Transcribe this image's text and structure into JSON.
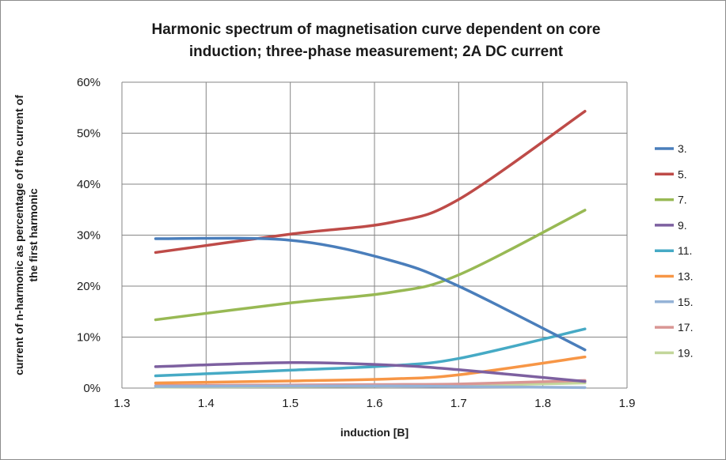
{
  "chart_data": {
    "type": "line",
    "title": [
      "Harmonic spectrum of magnetisation curve dependent on core",
      "induction; three-phase measurement; 2A DC current"
    ],
    "xlabel": "induction [B]",
    "ylabel": [
      "current of n-harmonic as percentage of the current of",
      "the first harmonic"
    ],
    "xlim": [
      1.3,
      1.9
    ],
    "ylim": [
      0,
      0.6
    ],
    "x_ticks": [
      1.3,
      1.4,
      1.5,
      1.6,
      1.7,
      1.8,
      1.9
    ],
    "x_tick_labels": [
      "1.3",
      "1.4",
      "1.5",
      "1.6",
      "1.7",
      "1.8",
      "1.9"
    ],
    "y_ticks": [
      0,
      0.1,
      0.2,
      0.3,
      0.4,
      0.5,
      0.6
    ],
    "y_tick_labels": [
      "0%",
      "10%",
      "20%",
      "30%",
      "40%",
      "50%",
      "60%"
    ],
    "grid": true,
    "legend_position": "right",
    "x": [
      1.34,
      1.5,
      1.62,
      1.7,
      1.85
    ],
    "series": [
      {
        "name": "3.",
        "color": "#4a7ebb",
        "values": [
          0.293,
          0.29,
          0.25,
          0.2,
          0.075
        ]
      },
      {
        "name": "5.",
        "color": "#be4b48",
        "values": [
          0.266,
          0.302,
          0.325,
          0.37,
          0.543
        ]
      },
      {
        "name": "7.",
        "color": "#98b954",
        "values": [
          0.134,
          0.167,
          0.188,
          0.222,
          0.349
        ]
      },
      {
        "name": "9.",
        "color": "#7d60a0",
        "values": [
          0.042,
          0.05,
          0.045,
          0.036,
          0.013
        ]
      },
      {
        "name": "11.",
        "color": "#46aac5",
        "values": [
          0.024,
          0.035,
          0.044,
          0.058,
          0.116
        ]
      },
      {
        "name": "13.",
        "color": "#f79646",
        "values": [
          0.01,
          0.014,
          0.018,
          0.026,
          0.061
        ]
      },
      {
        "name": "15.",
        "color": "#95b3d7",
        "values": [
          0.003,
          0.004,
          0.004,
          0.003,
          0.001
        ]
      },
      {
        "name": "17.",
        "color": "#d99694",
        "values": [
          0.005,
          0.006,
          0.007,
          0.008,
          0.015
        ]
      },
      {
        "name": "19.",
        "color": "#c3d69b",
        "values": [
          0.002,
          0.003,
          0.004,
          0.005,
          0.01
        ]
      }
    ]
  }
}
